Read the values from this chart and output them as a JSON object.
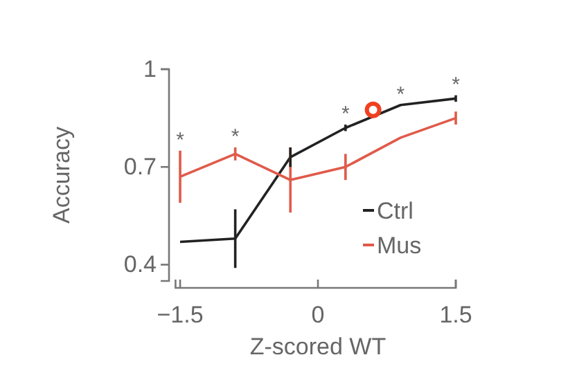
{
  "chart_data": {
    "type": "line",
    "xlabel": "Z-scored WT",
    "ylabel": "Accuracy",
    "x": [
      -1.5,
      -0.9,
      -0.3,
      0.3,
      0.9,
      1.5
    ],
    "xlim": [
      -1.55,
      1.5
    ],
    "xticks": [
      {
        "value": -1.5,
        "label": "−1.5"
      },
      0,
      1.5
    ],
    "ylim": [
      0.35,
      1
    ],
    "yticks": [
      0.4,
      0.7,
      1
    ],
    "series": [
      {
        "name": "Ctrl",
        "color": "#222222",
        "values": [
          0.47,
          0.48,
          0.73,
          0.82,
          0.89,
          0.91
        ],
        "errors": [
          null,
          0.09,
          0.03,
          0.01,
          null,
          0.01
        ]
      },
      {
        "name": "Mus",
        "color": "#e05a4a",
        "values": [
          0.67,
          0.74,
          0.66,
          0.7,
          0.79,
          0.85
        ],
        "errors": [
          0.08,
          0.02,
          0.1,
          0.04,
          null,
          0.02
        ]
      },
      {
        "type": "scatter",
        "color": "#f04020",
        "x": [
          0.6
        ],
        "values": [
          0.875
        ],
        "marker": "circle"
      }
    ],
    "annotations": [
      {
        "text": "*",
        "x": -1.5,
        "y": 0.75
      },
      {
        "text": "*",
        "x": -0.9,
        "y": 0.76
      },
      {
        "text": "*",
        "x": 0.3,
        "y": 0.83
      },
      {
        "text": "*",
        "x": 0.9,
        "y": 0.89
      },
      {
        "text": "*",
        "x": 1.5,
        "y": 0.92
      }
    ],
    "legend": "bottom right",
    "grid": false
  }
}
